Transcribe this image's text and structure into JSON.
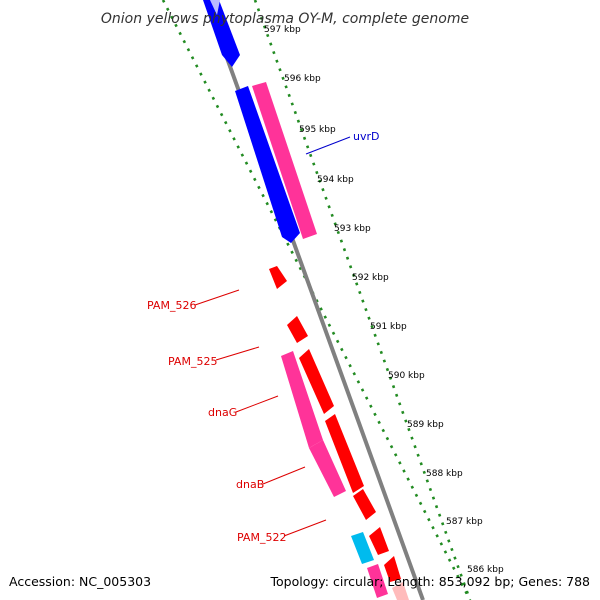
{
  "title": "Onion yellows phytoplasma OY-M, complete genome",
  "accession": "Accession: NC_005303",
  "summary": "Topology: circular; Length: 853,092 bp; Genes: 788",
  "ticks": [
    "597 kbp",
    "596 kbp",
    "595 kbp",
    "594 kbp",
    "593 kbp",
    "592 kbp",
    "591 kbp",
    "590 kbp",
    "589 kbp",
    "588 kbp",
    "587 kbp",
    "586 kbp"
  ],
  "gene_labels": [
    {
      "name": "uvrD",
      "color": "#0000cc"
    },
    {
      "name": "PAM_526",
      "color": "#dd0000"
    },
    {
      "name": "PAM_525",
      "color": "#dd0000"
    },
    {
      "name": "dnaG",
      "color": "#dd0000"
    },
    {
      "name": "dnaB",
      "color": "#dd0000"
    },
    {
      "name": "PAM_522",
      "color": "#dd0000"
    }
  ],
  "colors": {
    "backbone": "#808080",
    "forward_cds": "#0000ff",
    "reverse_cds": "#ff0000",
    "gene": "#ff3399",
    "other": "#00bbee",
    "tick_ring": "#228b22"
  }
}
